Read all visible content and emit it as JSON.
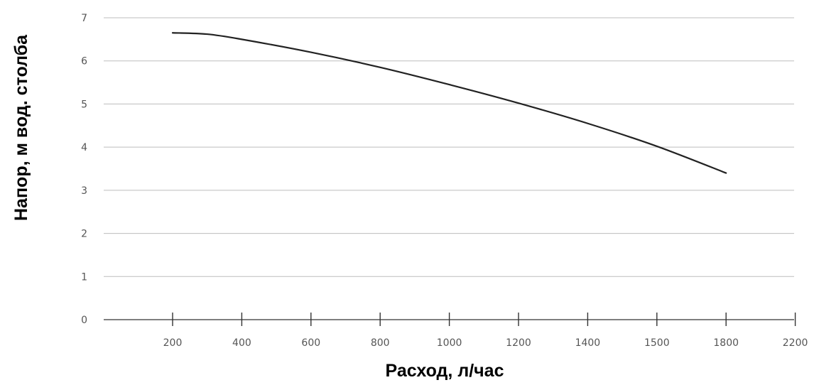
{
  "chart_data": {
    "type": "line",
    "title": "",
    "xlabel": "Расход, л/час",
    "ylabel": "Напор, м вод. столба",
    "x_ticks": [
      "200",
      "400",
      "600",
      "800",
      "1000",
      "1200",
      "1400",
      "1500",
      "1800",
      "2200"
    ],
    "y_ticks": [
      "0",
      "1",
      "2",
      "3",
      "4",
      "5",
      "6",
      "7"
    ],
    "ylim": [
      0,
      7
    ],
    "grid": "horizontal",
    "legend": "none",
    "line_color": "#222222",
    "series": [
      {
        "tick_index": [
          0,
          0.5,
          1,
          2,
          3,
          4,
          5,
          6,
          7,
          8
        ],
        "values": [
          6.65,
          6.62,
          6.5,
          6.2,
          5.85,
          5.45,
          5.02,
          4.55,
          4.02,
          3.4
        ]
      }
    ]
  }
}
